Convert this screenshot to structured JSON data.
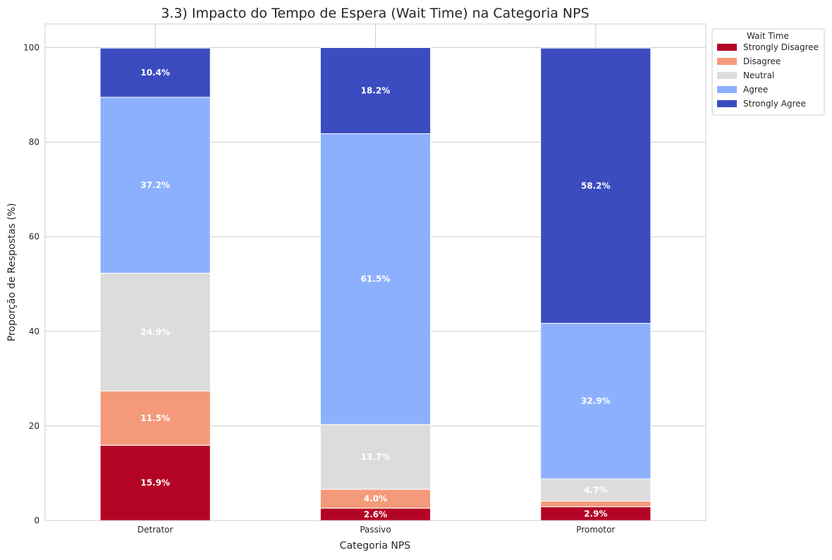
{
  "chart_data": {
    "type": "bar",
    "stacked": true,
    "title": "3.3) Impacto do Tempo de Espera (Wait Time) na Categoria NPS",
    "xlabel": "Categoria NPS",
    "ylabel": "Proporção de Respostas (%)",
    "ylim": [
      0,
      105
    ],
    "yticks": [
      0,
      20,
      40,
      60,
      80,
      100
    ],
    "grid": true,
    "categories": [
      "Detrator",
      "Passivo",
      "Promotor"
    ],
    "legend": {
      "title": "Wait Time",
      "placement": "upper-right-outside"
    },
    "series": [
      {
        "name": "Strongly Disagree",
        "color": "#b40426",
        "values": [
          15.9,
          2.6,
          2.9
        ],
        "labels": [
          "15.9%",
          "2.6%",
          "2.9%"
        ]
      },
      {
        "name": "Disagree",
        "color": "#f49a7b",
        "values": [
          11.5,
          4.0,
          1.2
        ],
        "labels": [
          "11.5%",
          "4.0%",
          ""
        ]
      },
      {
        "name": "Neutral",
        "color": "#dddcdc",
        "values": [
          24.9,
          13.7,
          4.7
        ],
        "labels": [
          "24.9%",
          "13.7%",
          "4.7%"
        ]
      },
      {
        "name": "Agree",
        "color": "#8db0fe",
        "values": [
          37.2,
          61.5,
          32.9
        ],
        "labels": [
          "37.2%",
          "61.5%",
          "32.9%"
        ]
      },
      {
        "name": "Strongly Agree",
        "color": "#3b4cc0",
        "values": [
          10.4,
          18.2,
          58.2
        ],
        "labels": [
          "10.4%",
          "18.2%",
          "58.2%"
        ]
      }
    ]
  }
}
